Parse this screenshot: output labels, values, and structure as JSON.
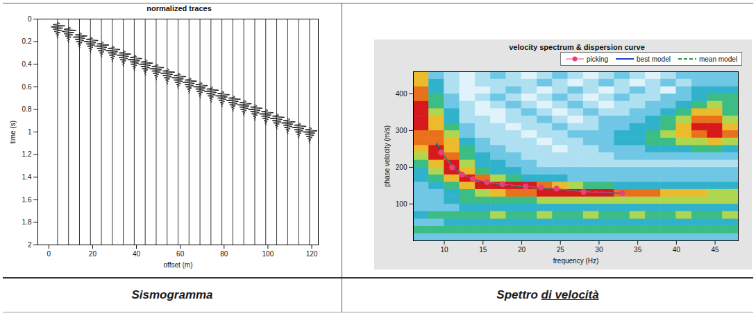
{
  "chart_data": [
    {
      "type": "seismogram",
      "title": "normalized traces",
      "x_label": "offset (m)",
      "y_label": "time (s)",
      "xlim": [
        -5,
        123
      ],
      "ylim": [
        0,
        2
      ],
      "xticks": [
        0,
        20,
        40,
        60,
        80,
        100,
        120
      ],
      "yticks": [
        0,
        0.2,
        0.4,
        0.6,
        0.8,
        1,
        1.2,
        1.4,
        1.6,
        1.8,
        2
      ],
      "color": "#000000",
      "traces": {
        "offsets": [
          4,
          9,
          14,
          19,
          24,
          29,
          34,
          39,
          44,
          49,
          54,
          59,
          64,
          69,
          74,
          79,
          84,
          89,
          94,
          99,
          104,
          109,
          114,
          119
        ],
        "onsets": [
          0.03,
          0.07,
          0.12,
          0.16,
          0.2,
          0.24,
          0.28,
          0.32,
          0.36,
          0.4,
          0.44,
          0.48,
          0.52,
          0.56,
          0.6,
          0.64,
          0.68,
          0.72,
          0.76,
          0.8,
          0.84,
          0.88,
          0.92,
          0.96
        ]
      },
      "wavelet": {
        "time": [
          0,
          0.01,
          0.02,
          0.03,
          0.04,
          0.05,
          0.06,
          0.07,
          0.08,
          0.09,
          0.1,
          0.11,
          0.12,
          0.13,
          0.14
        ],
        "deflection": [
          0,
          1,
          -2,
          3.5,
          -3,
          2.5,
          -2,
          2,
          -1.5,
          1.2,
          -0.8,
          0.6,
          -0.4,
          0.2,
          0
        ]
      }
    },
    {
      "type": "heatmap",
      "title": "velocity spectrum & dispersion curve",
      "x_label": "frequency (Hz)",
      "y_label": "phase velocity (m/s)",
      "xlim": [
        6,
        48
      ],
      "ylim": [
        0,
        460
      ],
      "xticks": [
        10,
        15,
        20,
        25,
        30,
        35,
        40,
        45
      ],
      "yticks": [
        100,
        200,
        300,
        400
      ],
      "frequency_bins": [
        6,
        8,
        10,
        12,
        14,
        16,
        18,
        20,
        22,
        24,
        26,
        28,
        30,
        32,
        34,
        36,
        38,
        40,
        42,
        44,
        46,
        48
      ],
      "velocity_bins": [
        0,
        20,
        40,
        60,
        80,
        100,
        120,
        140,
        160,
        180,
        200,
        220,
        240,
        260,
        280,
        300,
        320,
        340,
        360,
        380,
        400,
        420,
        440,
        460
      ],
      "zlim": [
        0,
        9
      ],
      "cells": [
        [
          3,
          3,
          3,
          3,
          3,
          3,
          3,
          3,
          3,
          3,
          3,
          3,
          3,
          3,
          3,
          3,
          3,
          3,
          3,
          3,
          3
        ],
        [
          5,
          5,
          5,
          5,
          5,
          5,
          5,
          5,
          5,
          5,
          5,
          5,
          5,
          5,
          5,
          5,
          5,
          5,
          5,
          5,
          5
        ],
        [
          3,
          3,
          4,
          4,
          4,
          4,
          4,
          4,
          4,
          4,
          4,
          4,
          4,
          4,
          4,
          4,
          4,
          4,
          4,
          4,
          4
        ],
        [
          4,
          5,
          5,
          5,
          5,
          6,
          5,
          5,
          6,
          5,
          5,
          6,
          5,
          5,
          6,
          5,
          5,
          6,
          5,
          5,
          6
        ],
        [
          3,
          3,
          3,
          4,
          4,
          4,
          4,
          4,
          4,
          4,
          4,
          4,
          4,
          4,
          4,
          4,
          4,
          4,
          4,
          4,
          4
        ],
        [
          3,
          3,
          4,
          5,
          5,
          5,
          5,
          5,
          6,
          6,
          6,
          6,
          6,
          6,
          6,
          6,
          6,
          6,
          6,
          6,
          6
        ],
        [
          3,
          3,
          4,
          5,
          6,
          7,
          8,
          8,
          9,
          9,
          9,
          9,
          9,
          8,
          8,
          8,
          7,
          7,
          7,
          6,
          6
        ],
        [
          3,
          4,
          5,
          7,
          9,
          9,
          9,
          9,
          8,
          7,
          6,
          5,
          5,
          4,
          4,
          4,
          4,
          4,
          4,
          4,
          4
        ],
        [
          4,
          5,
          7,
          9,
          8,
          6,
          5,
          4,
          4,
          4,
          3,
          3,
          3,
          3,
          3,
          3,
          3,
          3,
          3,
          3,
          3
        ],
        [
          4,
          6,
          9,
          7,
          5,
          4,
          4,
          3,
          3,
          3,
          3,
          3,
          3,
          3,
          3,
          3,
          3,
          3,
          3,
          3,
          3
        ],
        [
          5,
          7,
          9,
          6,
          4,
          4,
          3,
          3,
          2,
          2,
          2,
          2,
          2,
          2,
          2,
          2,
          2,
          2,
          2,
          2,
          2
        ],
        [
          6,
          9,
          8,
          5,
          4,
          3,
          3,
          2,
          2,
          2,
          2,
          2,
          2,
          3,
          3,
          3,
          3,
          3,
          3,
          3,
          3
        ],
        [
          7,
          9,
          7,
          5,
          3,
          3,
          2,
          2,
          2,
          1,
          2,
          2,
          3,
          3,
          3,
          4,
          4,
          4,
          5,
          5,
          4
        ],
        [
          8,
          8,
          7,
          4,
          3,
          2,
          2,
          2,
          1,
          2,
          2,
          3,
          3,
          4,
          4,
          5,
          5,
          6,
          6,
          7,
          6
        ],
        [
          8,
          8,
          6,
          3,
          2,
          2,
          2,
          1,
          2,
          2,
          3,
          3,
          3,
          4,
          4,
          5,
          6,
          7,
          8,
          9,
          8
        ],
        [
          9,
          7,
          5,
          3,
          2,
          2,
          1,
          2,
          2,
          3,
          2,
          2,
          3,
          3,
          4,
          4,
          5,
          7,
          9,
          9,
          7
        ],
        [
          9,
          7,
          4,
          2,
          2,
          1,
          2,
          2,
          3,
          2,
          1,
          2,
          3,
          3,
          3,
          4,
          5,
          6,
          8,
          8,
          6
        ],
        [
          9,
          6,
          4,
          2,
          1,
          1,
          2,
          3,
          2,
          1,
          2,
          3,
          2,
          2,
          3,
          3,
          4,
          5,
          7,
          7,
          5
        ],
        [
          9,
          5,
          3,
          2,
          1,
          2,
          3,
          2,
          1,
          2,
          3,
          2,
          1,
          2,
          2,
          3,
          3,
          4,
          5,
          6,
          5
        ],
        [
          8,
          5,
          3,
          1,
          2,
          3,
          2,
          1,
          2,
          3,
          2,
          1,
          2,
          3,
          2,
          2,
          3,
          3,
          4,
          5,
          5
        ],
        [
          8,
          4,
          2,
          1,
          1,
          2,
          3,
          2,
          1,
          2,
          3,
          2,
          1,
          2,
          3,
          2,
          1,
          3,
          4,
          4,
          4
        ],
        [
          7,
          4,
          2,
          1,
          2,
          2,
          2,
          2,
          3,
          2,
          1,
          2,
          3,
          2,
          1,
          2,
          3,
          2,
          3,
          3,
          3
        ],
        [
          7,
          3,
          2,
          1,
          2,
          3,
          2,
          1,
          2,
          3,
          2,
          1,
          2,
          3,
          2,
          1,
          2,
          3,
          3,
          3,
          3
        ]
      ],
      "legend": "top",
      "series": [
        {
          "name": "picking",
          "type": "scatter",
          "color": "#e8407a",
          "marker": "circle",
          "line_style": "solid",
          "x": [
            9.6,
            11,
            12.3,
            13.7,
            15.5,
            17.5,
            20.5,
            22.5,
            24.5,
            28,
            33
          ],
          "values": [
            240,
            200,
            180,
            168,
            160,
            154,
            148,
            145,
            142,
            133,
            130
          ]
        },
        {
          "name": "best model",
          "type": "line",
          "color": "#1f3fbf",
          "line_style": "solid",
          "x": [
            9,
            10,
            11,
            12,
            13,
            14,
            15,
            16,
            18,
            20,
            22,
            24,
            26,
            28,
            30,
            33
          ],
          "values": [
            262,
            228,
            204,
            186,
            174,
            166,
            160,
            156,
            151,
            147,
            144,
            141,
            138,
            135,
            132,
            129
          ]
        },
        {
          "name": "mean model",
          "type": "line",
          "color": "#2e8b3e",
          "line_style": "dashed",
          "x": [
            9,
            10,
            11,
            12,
            13,
            14,
            15,
            16,
            18,
            20,
            22,
            24,
            26,
            28,
            30,
            33
          ],
          "values": [
            266,
            231,
            206,
            188,
            175,
            167,
            161,
            157,
            151,
            147,
            144,
            141,
            138,
            135,
            133,
            130
          ]
        }
      ]
    }
  ],
  "captions": [
    "Sismogramma",
    "Spettro di velocità"
  ]
}
